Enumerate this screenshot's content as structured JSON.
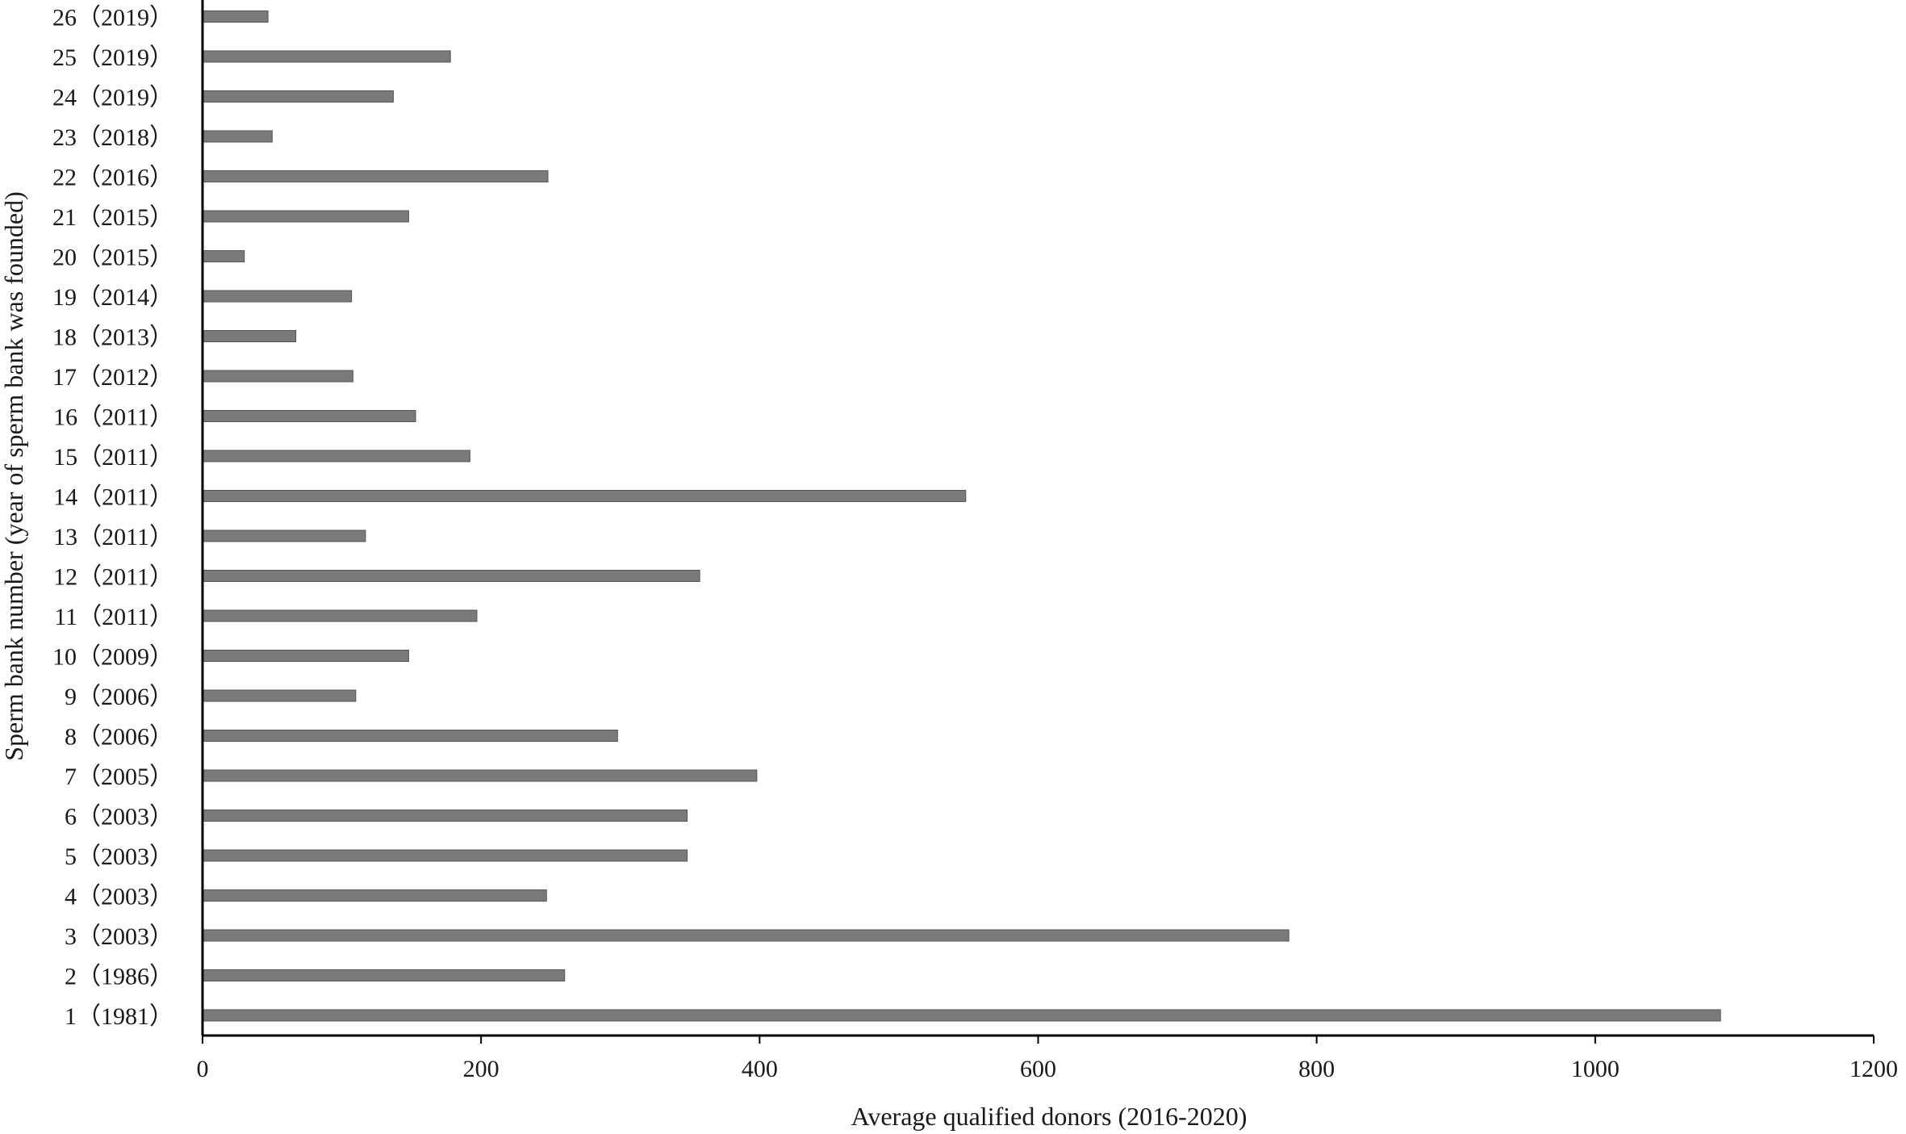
{
  "chart_data": {
    "type": "bar",
    "orientation": "horizontal",
    "categories": [
      "1（1981）",
      "2（1986）",
      "3（2003）",
      "4（2003）",
      "5（2003）",
      "6（2003）",
      "7（2005）",
      "8（2006）",
      "9（2006）",
      "10（2009）",
      "11（2011）",
      "12（2011）",
      "13（2011）",
      "14（2011）",
      "15（2011）",
      "16（2011）",
      "17（2012）",
      "18（2013）",
      "19（2014）",
      "20（2015）",
      "21（2015）",
      "22（2016）",
      "23（2018）",
      "24（2019）",
      "25（2019）",
      "26（2019）"
    ],
    "values": [
      1090,
      260,
      780,
      247,
      348,
      348,
      398,
      298,
      110,
      148,
      197,
      357,
      117,
      548,
      192,
      153,
      108,
      67,
      107,
      30,
      148,
      248,
      50,
      137,
      178,
      47
    ],
    "title": "",
    "xlabel": "Average qualified donors (2016-2020)",
    "ylabel": "Sperm bank number (year of sperm bank was founded)",
    "xlim": [
      0,
      1200
    ],
    "xticks": [
      "0",
      "200",
      "400",
      "600",
      "800",
      "1000",
      "1200"
    ],
    "grid": false,
    "bar_color": "#7a7a7a"
  }
}
